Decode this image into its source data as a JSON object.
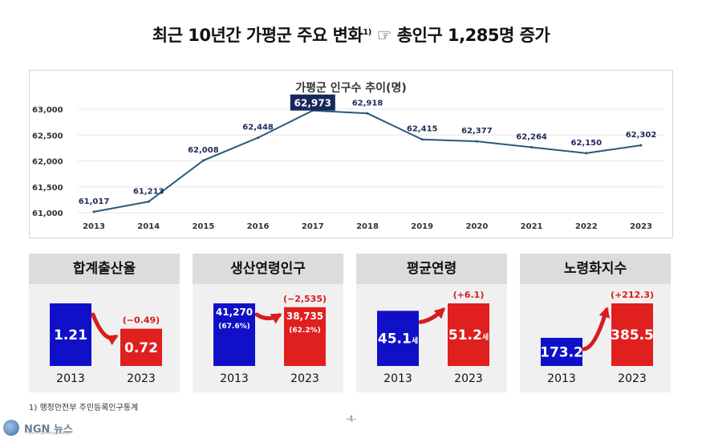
{
  "title": {
    "text": "최근 10년간 가평군 주요 변화",
    "footnote_mark": "1)",
    "suffix": " ☞ 총인구 1,285명 증가"
  },
  "chart_data": [
    {
      "type": "line",
      "title": "가평군 인구수 추이(명)",
      "x": [
        "2013",
        "2014",
        "2015",
        "2016",
        "2017",
        "2018",
        "2019",
        "2020",
        "2021",
        "2022",
        "2023"
      ],
      "series": [
        {
          "values": [
            61017,
            61213,
            62008,
            62448,
            62973,
            62918,
            62415,
            62377,
            62264,
            62150,
            62302
          ]
        }
      ],
      "data_labels": [
        "61,017",
        "61,213",
        "62,008",
        "62,448",
        "62,973",
        "62,918",
        "62,415",
        "62,377",
        "62,264",
        "62,150",
        "62,302"
      ],
      "highlight_index": 4,
      "ylim": [
        61000,
        63000
      ],
      "yticks": [
        61000,
        61500,
        62000,
        62500,
        63000
      ],
      "ytick_labels": [
        "61,000",
        "61,500",
        "62,000",
        "62,500",
        "63,000"
      ],
      "grid": true,
      "line_color": "#2a5a7a",
      "highlight_color": "#17285e"
    },
    {
      "type": "bar",
      "title": "합계출산율",
      "categories": [
        "2013",
        "2023"
      ],
      "values": [
        1.21,
        0.72
      ],
      "value_labels": [
        "1.21",
        "0.72"
      ],
      "change": "(−0.49)",
      "colors": [
        "#1010c8",
        "#e01f1f"
      ]
    },
    {
      "type": "bar",
      "title": "생산연령인구",
      "categories": [
        "2013",
        "2023"
      ],
      "values": [
        41270,
        38735
      ],
      "value_labels": [
        "41,270",
        "38,735"
      ],
      "sub_labels": [
        "(67.6%)",
        "(62.2%)"
      ],
      "change": "(−2,535)",
      "colors": [
        "#1010c8",
        "#e01f1f"
      ]
    },
    {
      "type": "bar",
      "title": "평균연령",
      "categories": [
        "2013",
        "2023"
      ],
      "values": [
        45.1,
        51.2
      ],
      "value_labels": [
        "45.1",
        "51.2"
      ],
      "unit": "세",
      "change": "(+6.1)",
      "colors": [
        "#1010c8",
        "#e01f1f"
      ]
    },
    {
      "type": "bar",
      "title": "노령화지수",
      "categories": [
        "2013",
        "2023"
      ],
      "values": [
        173.2,
        385.5
      ],
      "value_labels": [
        "173.2",
        "385.5"
      ],
      "change": "(+212.3)",
      "colors": [
        "#1010c8",
        "#e01f1f"
      ]
    }
  ],
  "footnote": "1) 행정안전부 주민등록인구통계",
  "page_number": "-4-",
  "logo": {
    "brand": "NGN 뉴스",
    "sub": "North Gyeonggi News"
  },
  "colors": {
    "blue": "#1010c8",
    "red": "#e01f1f",
    "arrow": "#d71d1d",
    "panel_bg": "#f0f0f0",
    "panel_header": "#dcdcdc"
  }
}
